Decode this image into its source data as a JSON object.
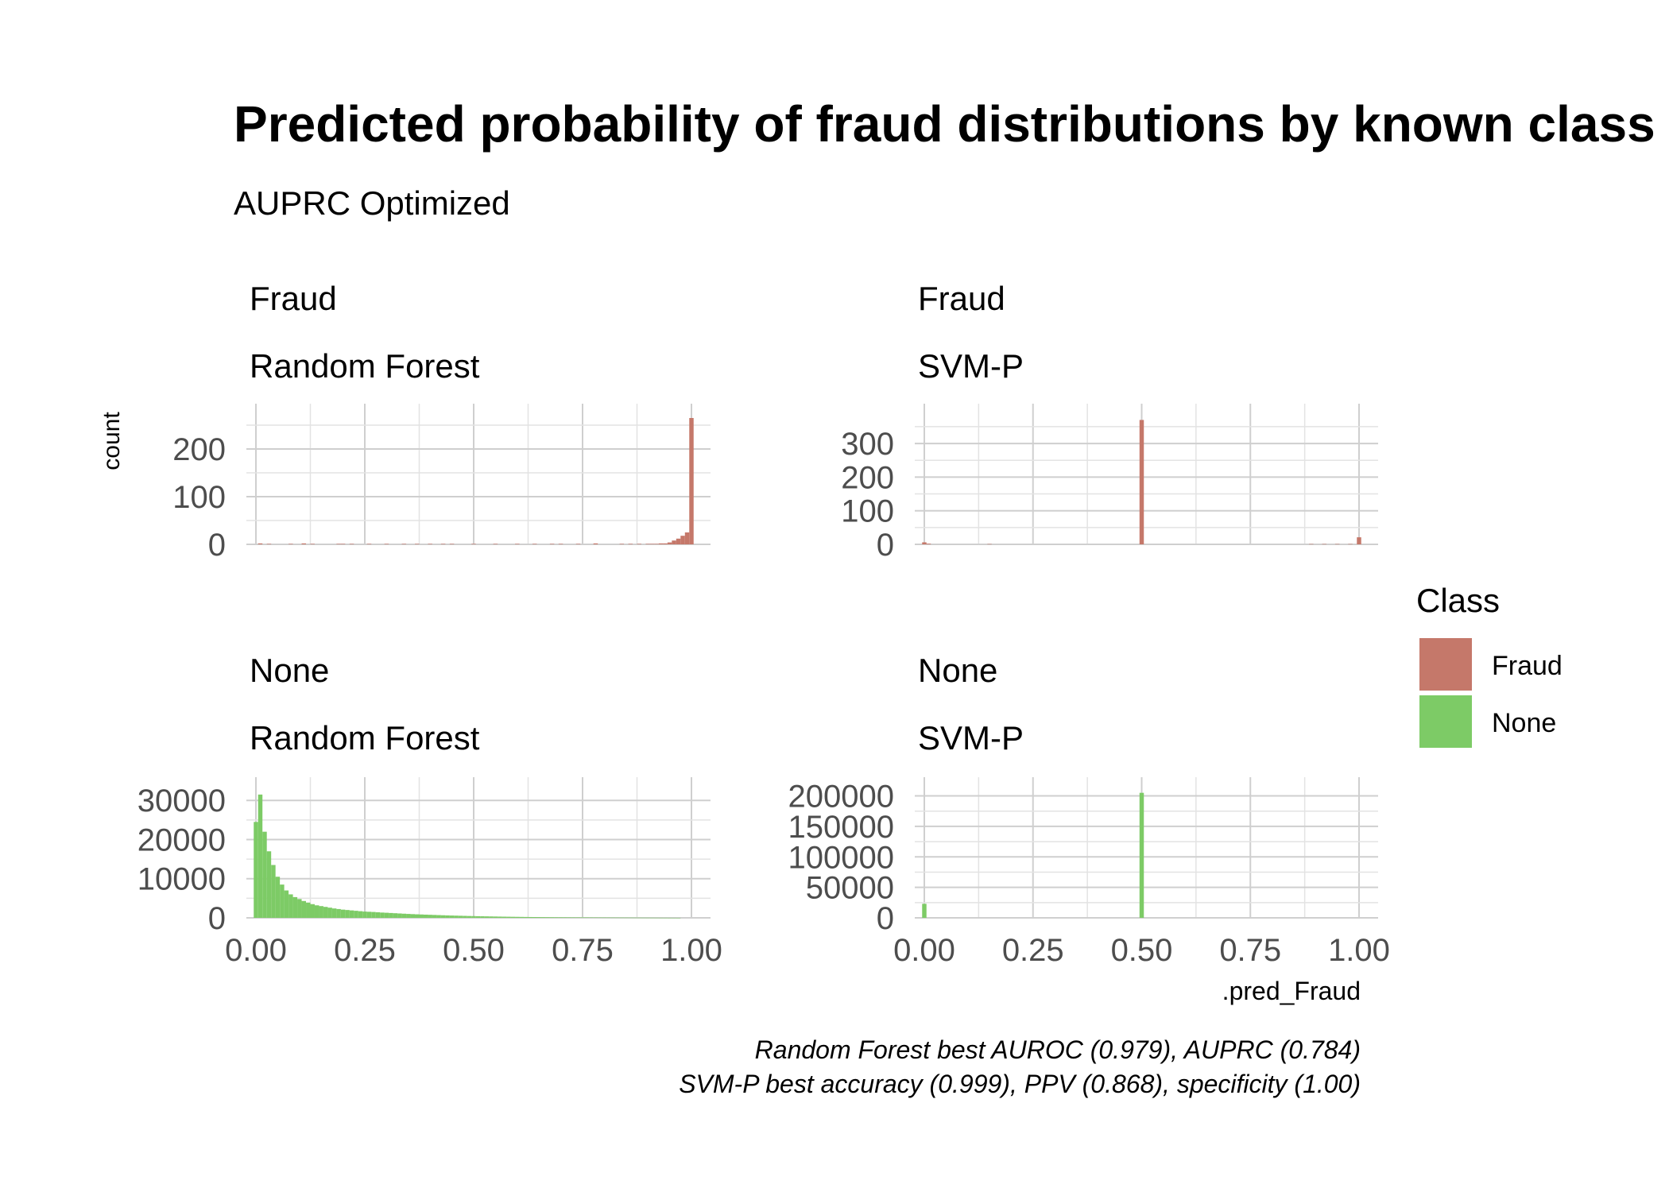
{
  "title": "Predicted probability of fraud distributions by known class",
  "subtitle": "AUPRC Optimized",
  "caption_line1": "Random Forest best AUROC (0.979), AUPRC (0.784)",
  "caption_line2": "SVM-P best accuracy (0.999), PPV (0.868), specificity (1.00)",
  "ylabel": "count",
  "xlabel": ".pred_Fraud",
  "legend": {
    "title": "Class",
    "items": [
      {
        "label": "Fraud",
        "color": "#c5786a"
      },
      {
        "label": "None",
        "color": "#7dcb66"
      }
    ]
  },
  "chart_data": [
    {
      "type": "bar",
      "panel": "top-left",
      "strip1": "Fraud",
      "strip2": "Random Forest",
      "class": "Fraud",
      "color": "#c5786a",
      "xlim": [
        0,
        1
      ],
      "ylim": [
        0,
        275
      ],
      "yticks": [
        0,
        100,
        200
      ],
      "yticklabels": [
        "0",
        "100",
        "200"
      ],
      "bins": [
        [
          0.01,
          2
        ],
        [
          0.03,
          1
        ],
        [
          0.08,
          1
        ],
        [
          0.11,
          2
        ],
        [
          0.13,
          1
        ],
        [
          0.19,
          1
        ],
        [
          0.2,
          1
        ],
        [
          0.22,
          1
        ],
        [
          0.26,
          1
        ],
        [
          0.3,
          1
        ],
        [
          0.34,
          1
        ],
        [
          0.37,
          1
        ],
        [
          0.4,
          1
        ],
        [
          0.43,
          1
        ],
        [
          0.45,
          1
        ],
        [
          0.5,
          1
        ],
        [
          0.55,
          1
        ],
        [
          0.6,
          1
        ],
        [
          0.64,
          1
        ],
        [
          0.68,
          1
        ],
        [
          0.7,
          1
        ],
        [
          0.74,
          1
        ],
        [
          0.78,
          2
        ],
        [
          0.84,
          1
        ],
        [
          0.86,
          1
        ],
        [
          0.88,
          1
        ],
        [
          0.9,
          1
        ],
        [
          0.91,
          1
        ],
        [
          0.92,
          1
        ],
        [
          0.93,
          2
        ],
        [
          0.94,
          2
        ],
        [
          0.95,
          4
        ],
        [
          0.96,
          8
        ],
        [
          0.97,
          12
        ],
        [
          0.98,
          18
        ],
        [
          0.99,
          25
        ],
        [
          1.0,
          265
        ]
      ]
    },
    {
      "type": "bar",
      "panel": "top-right",
      "strip1": "Fraud",
      "strip2": "SVM-P",
      "class": "Fraud",
      "color": "#c5786a",
      "xlim": [
        0,
        1
      ],
      "ylim": [
        0,
        390
      ],
      "yticks": [
        0,
        100,
        200,
        300
      ],
      "yticklabels": [
        "0",
        "100",
        "200",
        "300"
      ],
      "bins": [
        [
          0.0,
          6
        ],
        [
          0.01,
          2
        ],
        [
          0.15,
          1
        ],
        [
          0.5,
          370
        ],
        [
          0.89,
          1
        ],
        [
          0.92,
          1
        ],
        [
          0.95,
          1
        ],
        [
          0.98,
          1
        ],
        [
          1.0,
          21
        ]
      ]
    },
    {
      "type": "bar",
      "panel": "bottom-left",
      "strip1": "None",
      "strip2": "Random Forest",
      "class": "None",
      "color": "#7dcb66",
      "xlim": [
        0,
        1
      ],
      "ylim": [
        0,
        33500
      ],
      "yticks": [
        0,
        10000,
        20000,
        30000
      ],
      "yticklabels": [
        "0",
        "10000",
        "20000",
        "30000"
      ],
      "xticks": [
        0,
        0.25,
        0.5,
        0.75,
        1
      ],
      "xticklabels": [
        "0.00",
        "0.25",
        "0.50",
        "0.75",
        "1.00"
      ],
      "bins": [
        [
          0.0,
          24500
        ],
        [
          0.01,
          31500
        ],
        [
          0.02,
          22000
        ],
        [
          0.03,
          17000
        ],
        [
          0.04,
          13500
        ],
        [
          0.05,
          10500
        ],
        [
          0.06,
          8500
        ],
        [
          0.07,
          7000
        ],
        [
          0.08,
          6000
        ],
        [
          0.09,
          5300
        ],
        [
          0.1,
          4800
        ],
        [
          0.11,
          4300
        ],
        [
          0.12,
          3900
        ],
        [
          0.13,
          3500
        ],
        [
          0.14,
          3200
        ],
        [
          0.15,
          3000
        ],
        [
          0.16,
          2800
        ],
        [
          0.17,
          2600
        ],
        [
          0.18,
          2400
        ],
        [
          0.19,
          2250
        ],
        [
          0.2,
          2100
        ],
        [
          0.21,
          2000
        ],
        [
          0.22,
          1900
        ],
        [
          0.23,
          1800
        ],
        [
          0.24,
          1700
        ],
        [
          0.25,
          1600
        ],
        [
          0.26,
          1550
        ],
        [
          0.27,
          1500
        ],
        [
          0.28,
          1420
        ],
        [
          0.29,
          1350
        ],
        [
          0.3,
          1300
        ],
        [
          0.31,
          1240
        ],
        [
          0.32,
          1180
        ],
        [
          0.33,
          1120
        ],
        [
          0.34,
          1060
        ],
        [
          0.35,
          1000
        ],
        [
          0.36,
          950
        ],
        [
          0.37,
          900
        ],
        [
          0.38,
          860
        ],
        [
          0.39,
          820
        ],
        [
          0.4,
          780
        ],
        [
          0.41,
          740
        ],
        [
          0.42,
          700
        ],
        [
          0.43,
          660
        ],
        [
          0.44,
          620
        ],
        [
          0.45,
          590
        ],
        [
          0.46,
          560
        ],
        [
          0.47,
          530
        ],
        [
          0.48,
          500
        ],
        [
          0.49,
          470
        ],
        [
          0.5,
          450
        ],
        [
          0.51,
          420
        ],
        [
          0.52,
          400
        ],
        [
          0.53,
          380
        ],
        [
          0.54,
          360
        ],
        [
          0.55,
          340
        ],
        [
          0.56,
          320
        ],
        [
          0.57,
          300
        ],
        [
          0.58,
          285
        ],
        [
          0.59,
          270
        ],
        [
          0.6,
          255
        ],
        [
          0.61,
          240
        ],
        [
          0.62,
          225
        ],
        [
          0.63,
          210
        ],
        [
          0.64,
          200
        ],
        [
          0.65,
          190
        ],
        [
          0.66,
          180
        ],
        [
          0.67,
          170
        ],
        [
          0.68,
          160
        ],
        [
          0.69,
          150
        ],
        [
          0.7,
          145
        ],
        [
          0.71,
          140
        ],
        [
          0.72,
          130
        ],
        [
          0.73,
          125
        ],
        [
          0.74,
          120
        ],
        [
          0.75,
          115
        ],
        [
          0.76,
          110
        ],
        [
          0.77,
          105
        ],
        [
          0.78,
          100
        ],
        [
          0.79,
          95
        ],
        [
          0.8,
          90
        ],
        [
          0.81,
          85
        ],
        [
          0.82,
          80
        ],
        [
          0.83,
          75
        ],
        [
          0.84,
          70
        ],
        [
          0.85,
          65
        ],
        [
          0.86,
          60
        ],
        [
          0.87,
          55
        ],
        [
          0.88,
          50
        ],
        [
          0.89,
          45
        ],
        [
          0.9,
          40
        ],
        [
          0.91,
          35
        ],
        [
          0.92,
          30
        ],
        [
          0.93,
          25
        ],
        [
          0.94,
          20
        ],
        [
          0.95,
          15
        ],
        [
          0.96,
          10
        ],
        [
          0.97,
          5
        ]
      ]
    },
    {
      "type": "bar",
      "panel": "bottom-right",
      "strip1": "None",
      "strip2": "SVM-P",
      "class": "None",
      "color": "#7dcb66",
      "xlim": [
        0,
        1
      ],
      "ylim": [
        0,
        215000
      ],
      "yticks": [
        0,
        50000,
        100000,
        150000,
        200000
      ],
      "yticklabels": [
        "0",
        "50000",
        "100000",
        "150000",
        "200000"
      ],
      "xticks": [
        0,
        0.25,
        0.5,
        0.75,
        1
      ],
      "xticklabels": [
        "0.00",
        "0.25",
        "0.50",
        "0.75",
        "1.00"
      ],
      "bins": [
        [
          0.0,
          23000
        ],
        [
          0.5,
          205000
        ]
      ]
    }
  ]
}
